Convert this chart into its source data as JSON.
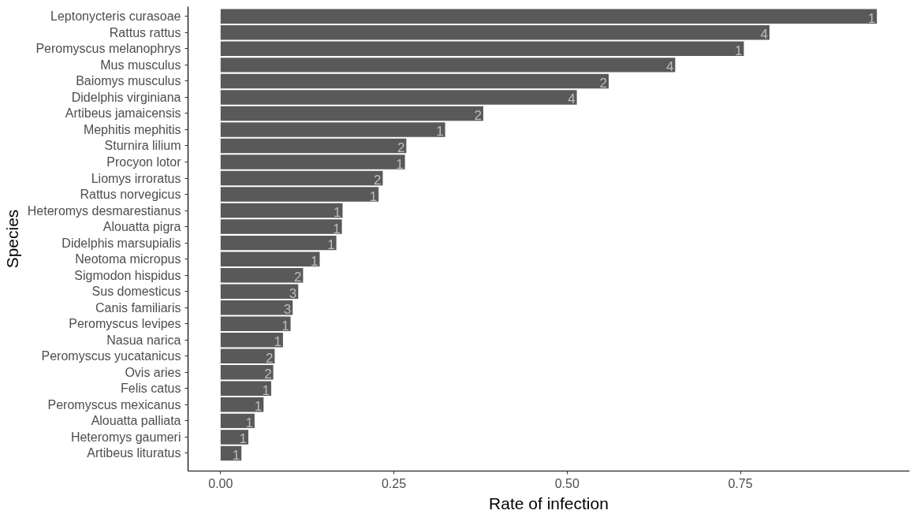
{
  "chart_data": {
    "type": "bar",
    "orientation": "horizontal",
    "xlabel": "Rate of infection",
    "ylabel": "Species",
    "categories": [
      "Leptonycteris curasoae",
      "Rattus rattus",
      "Peromyscus melanophrys",
      "Mus musculus",
      "Baiomys musculus",
      "Didelphis virginiana",
      "Artibeus jamaicensis",
      "Mephitis mephitis",
      "Sturnira lilium",
      "Procyon lotor",
      "Liomys irroratus",
      "Rattus norvegicus",
      "Heteromys desmarestianus",
      "Alouatta pigra",
      "Didelphis marsupialis",
      "Neotoma micropus",
      "Sigmodon hispidus",
      "Sus domesticus",
      "Canis familiaris",
      "Peromyscus levipes",
      "Nasua narica",
      "Peromyscus yucatanicus",
      "Ovis aries",
      "Felis catus",
      "Peromyscus mexicanus",
      "Alouatta palliata",
      "Heteromys gaumeri",
      "Artibeus lituratus"
    ],
    "values": [
      0.947,
      0.792,
      0.755,
      0.656,
      0.56,
      0.514,
      0.379,
      0.324,
      0.268,
      0.266,
      0.234,
      0.228,
      0.176,
      0.175,
      0.167,
      0.143,
      0.119,
      0.112,
      0.104,
      0.101,
      0.09,
      0.078,
      0.076,
      0.073,
      0.062,
      0.049,
      0.04,
      0.03
    ],
    "annotations": [
      {
        "text": "1",
        "x": 0.947,
        "y": "Leptonycteris curasoae"
      },
      {
        "text": "4",
        "x": 0.792,
        "y": "Rattus rattus"
      },
      {
        "text": "1",
        "x": 0.755,
        "y": "Peromyscus melanophrys"
      },
      {
        "text": "4",
        "x": 0.656,
        "y": "Mus musculus"
      },
      {
        "text": "2",
        "x": 0.56,
        "y": "Baiomys musculus"
      },
      {
        "text": "4",
        "x": 0.514,
        "y": "Didelphis virginiana"
      },
      {
        "text": "2",
        "x": 0.379,
        "y": "Artibeus jamaicensis"
      },
      {
        "text": "1",
        "x": 0.324,
        "y": "Mephitis mephitis"
      },
      {
        "text": "2",
        "x": 0.268,
        "y": "Sturnira lilium"
      },
      {
        "text": "1",
        "x": 0.266,
        "y": "Procyon lotor"
      },
      {
        "text": "2",
        "x": 0.234,
        "y": "Liomys irroratus"
      },
      {
        "text": "1",
        "x": 0.228,
        "y": "Rattus norvegicus"
      },
      {
        "text": "1",
        "x": 0.176,
        "y": "Heteromys desmarestianus"
      },
      {
        "text": "1",
        "x": 0.175,
        "y": "Alouatta pigra"
      },
      {
        "text": "1",
        "x": 0.167,
        "y": "Didelphis marsupialis"
      },
      {
        "text": "1",
        "x": 0.143,
        "y": "Neotoma micropus"
      },
      {
        "text": "2",
        "x": 0.119,
        "y": "Sigmodon hispidus"
      },
      {
        "text": "3",
        "x": 0.112,
        "y": "Sus domesticus"
      },
      {
        "text": "3",
        "x": 0.104,
        "y": "Canis familiaris"
      },
      {
        "text": "1",
        "x": 0.101,
        "y": "Peromyscus levipes"
      },
      {
        "text": "1",
        "x": 0.09,
        "y": "Nasua narica"
      },
      {
        "text": "2",
        "x": 0.078,
        "y": "Peromyscus yucatanicus"
      },
      {
        "text": "2",
        "x": 0.076,
        "y": "Ovis aries"
      },
      {
        "text": "1",
        "x": 0.073,
        "y": "Felis catus"
      },
      {
        "text": "1",
        "x": 0.062,
        "y": "Peromyscus mexicanus"
      },
      {
        "text": "1",
        "x": 0.049,
        "y": "Alouatta palliata"
      },
      {
        "text": "1",
        "x": 0.04,
        "y": "Heteromys gaumeri"
      },
      {
        "text": "1",
        "x": 0.03,
        "y": "Artibeus lituratus"
      }
    ],
    "color": "#595959",
    "xlim": [
      -0.047,
      0.994
    ],
    "xticks": [
      {
        "value": 0,
        "label": "0.00"
      },
      {
        "value": 0.25,
        "label": "0.25"
      },
      {
        "value": 0.5,
        "label": "0.50"
      },
      {
        "value": 0.75,
        "label": "0.75"
      }
    ],
    "grid": false
  }
}
